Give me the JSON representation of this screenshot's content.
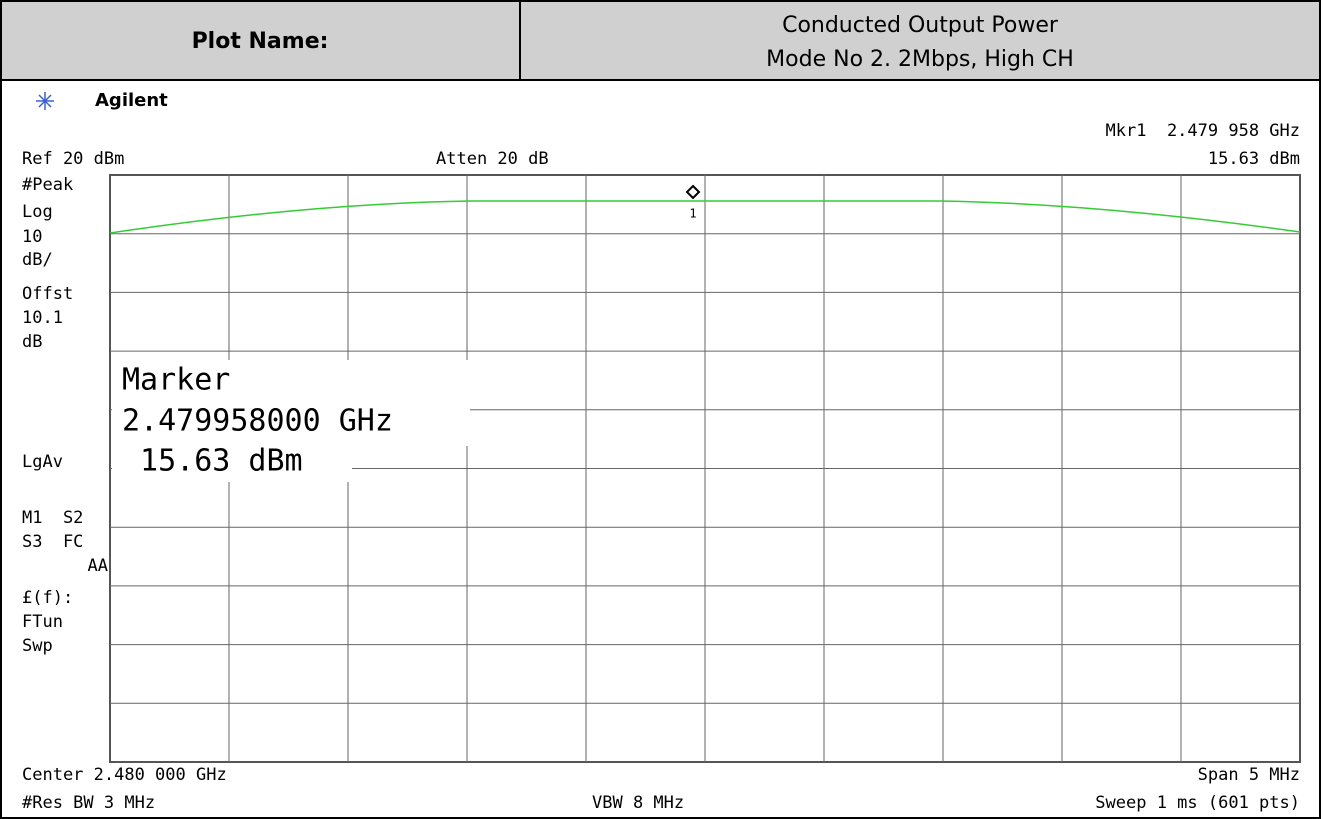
{
  "header": {
    "label": "Plot Name:",
    "title_lines": [
      "Conducted Output Power",
      "Mode No 2. 2Mbps, High CH"
    ]
  },
  "screen": {
    "brand": "Agilent",
    "marker_readout": "Mkr1  2.479 958 GHz",
    "marker_level": "15.63 dBm",
    "ref_level": "Ref 20 dBm",
    "attenuation": "Atten 20 dB",
    "side_labels": [
      "#Peak",
      "Log",
      "10",
      "dB/",
      "Offst",
      "10.1",
      "dB",
      "LgAv",
      "M1  S2",
      "S3  FC",
      "AA",
      "£(f):",
      "FTun",
      "Swp"
    ],
    "marker_box": [
      "Marker",
      "2.479958000 GHz",
      " 15.63 dBm"
    ],
    "marker_number": "1",
    "center": "Center 2.480 000 GHz",
    "span": "Span 5 MHz",
    "rbw": "#Res BW 3 MHz",
    "vbw": "VBW 8 MHz",
    "sweep": "Sweep 1 ms (601 pts)"
  }
}
